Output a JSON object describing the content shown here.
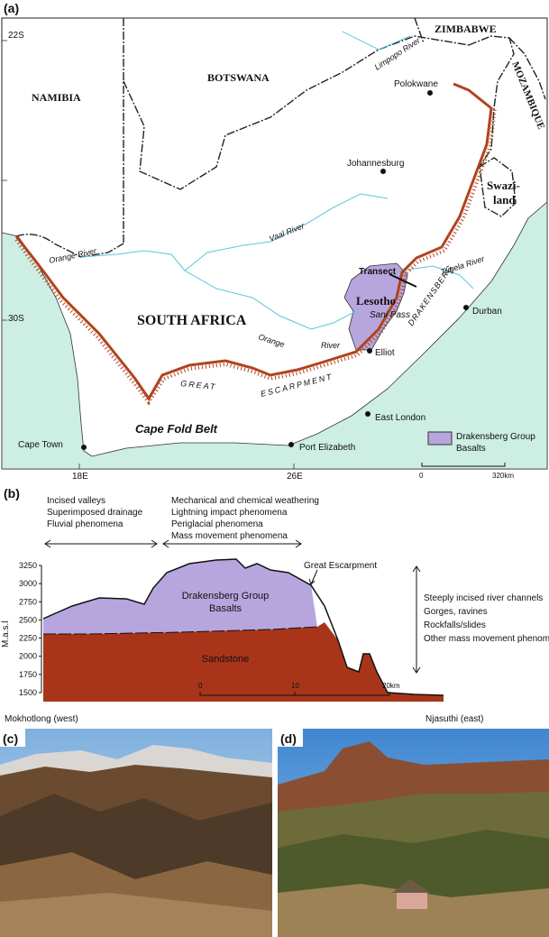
{
  "map": {
    "panel_label": "(a)",
    "lat_labels": [
      "22S",
      "30S"
    ],
    "lon_labels": [
      "18E",
      "26E"
    ],
    "countries": [
      "ZIMBABWE",
      "BOTSWANA",
      "NAMIBIA",
      "MOZAMBIQUE",
      "SOUTH AFRICA",
      "Lesotho"
    ],
    "swaziland": [
      "Swazi-",
      "land"
    ],
    "rivers": [
      "Limpopo River",
      "Vaal River",
      "Orange River",
      "Orange",
      "River",
      "Tugela River"
    ],
    "cities": [
      "Polokwane",
      "Johannesburg",
      "Durban",
      "Elliot",
      "East London",
      "Port Elizabeth",
      "Cape Town"
    ],
    "features": [
      "Transect",
      "Sani Pass",
      "DRAKENSBERG",
      "GREAT",
      "ESCARPMENT",
      "Cape Fold Belt"
    ],
    "legend": [
      "Drakensberg Group",
      "Basalts"
    ],
    "scale": [
      "0",
      "320km"
    ]
  },
  "section": {
    "panel_label": "(b)",
    "west_processes": [
      "Incised  valleys",
      "Superimposed drainage",
      "Fluvial phenomena"
    ],
    "upper_processes": [
      "Mechanical and chemical weathering",
      "Lightning impact phenomena",
      "Periglacial phenomena",
      "Mass movement phenomena"
    ],
    "east_processes": [
      "Steeply incised river channels",
      "Gorges, ravines",
      "Rockfalls/slides",
      "Other mass movement phenomena"
    ],
    "y_label": "M.a.s.l",
    "yticks": [
      1500,
      1750,
      2000,
      2250,
      2500,
      2750,
      3000,
      3250
    ],
    "basalt": [
      "Drakensberg Group",
      "Basalts"
    ],
    "sandstone": "Sandstone",
    "escarpment": "Great Escarpment",
    "scale": [
      "0",
      "10",
      "20km"
    ],
    "west_end": "Mokhotlong (west)",
    "east_end": "Njasuthi (east)"
  },
  "photos": {
    "left_label": "(c)",
    "right_label": "(d)"
  }
}
